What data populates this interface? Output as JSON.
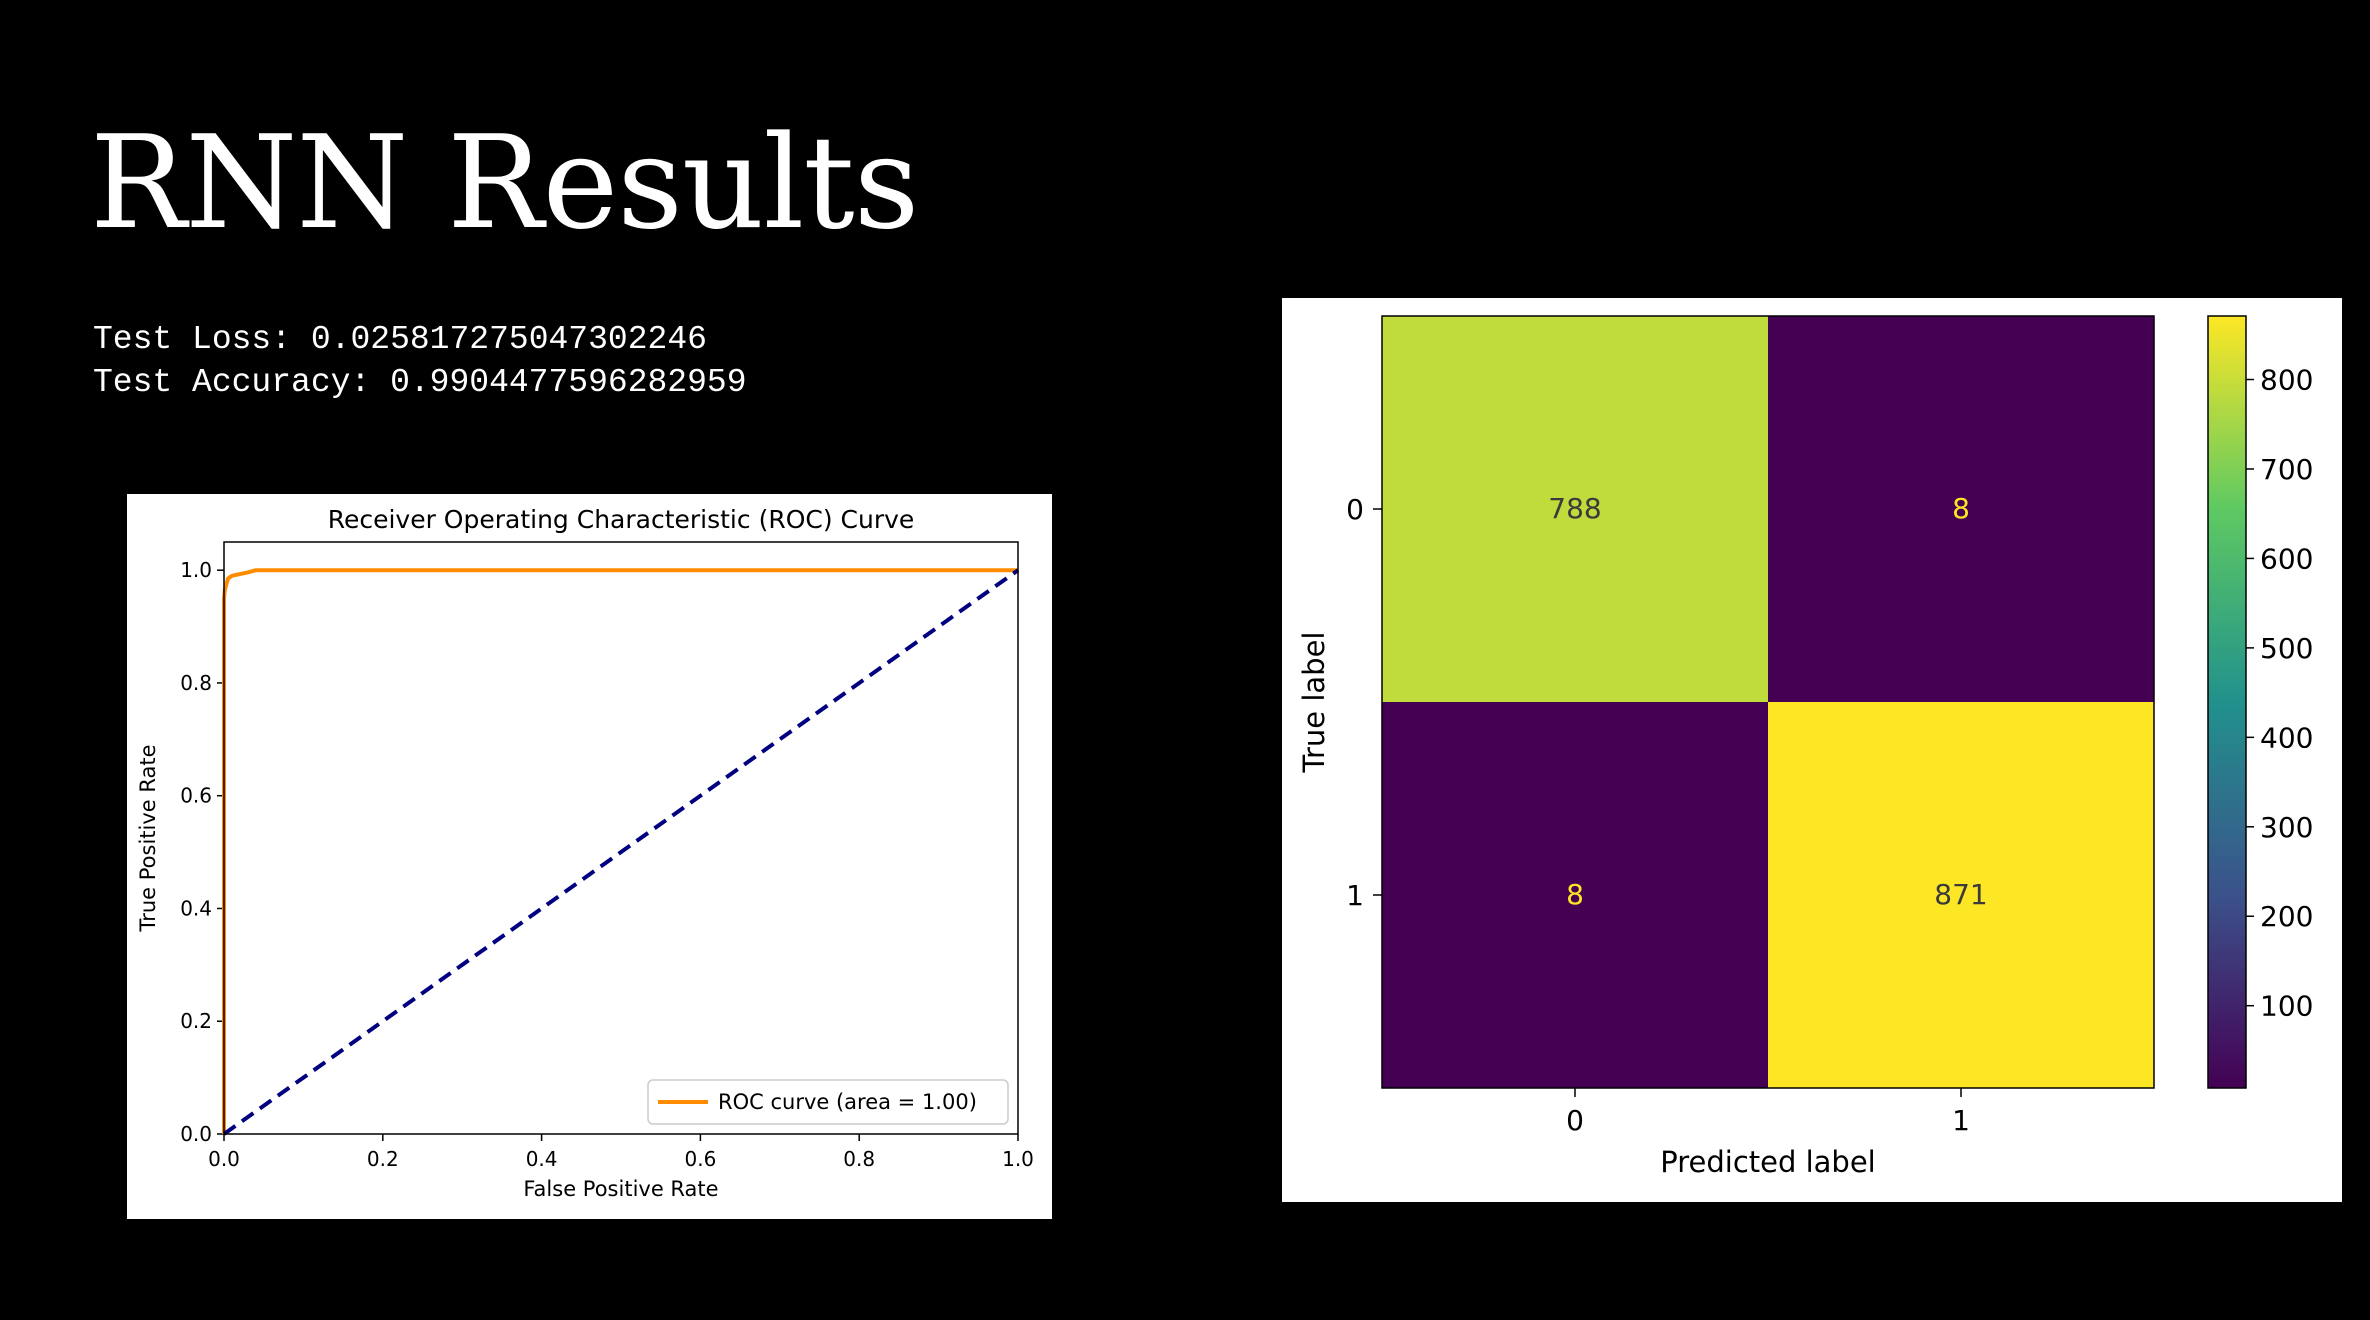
{
  "slide": {
    "title": "RNN Results",
    "metrics": [
      {
        "label": "Test Loss:",
        "value": "0.025817275047302246"
      },
      {
        "label": "Test Accuracy:",
        "value": "0.9904477596282959"
      }
    ]
  },
  "colors": {
    "background": "#000000",
    "roc_curve": "#ff8c00",
    "diagonal": "#000080",
    "cm_high": "#fde725",
    "cm_mid_high": "#bddf26",
    "cm_low": "#440154"
  },
  "chart_data": [
    {
      "type": "line",
      "title": "Receiver Operating Characteristic (ROC) Curve",
      "xlabel": "False Positive Rate",
      "ylabel": "True Positive Rate",
      "xlim": [
        0.0,
        1.0
      ],
      "ylim": [
        0.0,
        1.05
      ],
      "xticks": [
        0.0,
        0.2,
        0.4,
        0.6,
        0.8,
        1.0
      ],
      "yticks": [
        0.0,
        0.2,
        0.4,
        0.6,
        0.8,
        1.0
      ],
      "xtick_labels": [
        "0.0",
        "0.2",
        "0.4",
        "0.6",
        "0.8",
        "1.0"
      ],
      "ytick_labels": [
        "0.0",
        "0.2",
        "0.4",
        "0.6",
        "0.8",
        "1.0"
      ],
      "grid": false,
      "legend": "lower right",
      "series": [
        {
          "name": "ROC curve (area = 1.00)",
          "color": "#ff8c00",
          "style": "solid",
          "x": [
            0.0,
            0.0,
            0.001,
            0.003,
            0.005,
            0.01,
            0.02,
            0.03,
            0.04,
            1.0
          ],
          "y": [
            0.0,
            0.95,
            0.965,
            0.975,
            0.985,
            0.99,
            0.993,
            0.996,
            1.0,
            1.0
          ]
        },
        {
          "color": "#000080",
          "style": "dashed",
          "x": [
            0.0,
            1.0
          ],
          "y": [
            0.0,
            1.0
          ]
        }
      ]
    },
    {
      "type": "heatmap",
      "xlabel": "Predicted label",
      "ylabel": "True label",
      "x_categories": [
        "0",
        "1"
      ],
      "y_categories": [
        "0",
        "1"
      ],
      "values": [
        [
          788,
          8
        ],
        [
          8,
          871
        ]
      ],
      "colorbar": {
        "colormap": "viridis",
        "min": 8,
        "max": 871,
        "ticks": [
          100,
          200,
          300,
          400,
          500,
          600,
          700,
          800
        ],
        "tick_labels": [
          "100",
          "200",
          "300",
          "400",
          "500",
          "600",
          "700",
          "800"
        ]
      }
    }
  ]
}
